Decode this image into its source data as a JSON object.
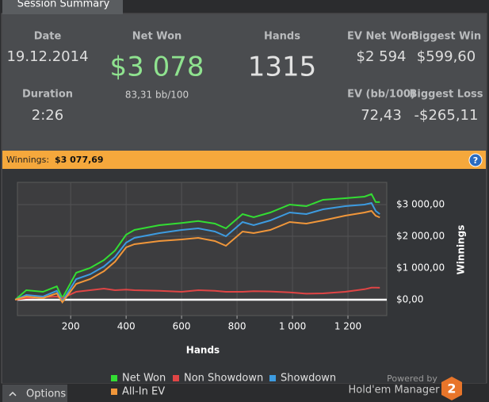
{
  "tab": "Session Summary",
  "summary": {
    "stats": [
      {
        "label": "Date",
        "value": "19.12.2014"
      },
      {
        "label": "Net Won",
        "value": "$3 078",
        "sub": "83,31 bb/100"
      },
      {
        "label": "Hands",
        "value": "1315"
      },
      {
        "label": "EV Net Won",
        "value": "$2 594"
      },
      {
        "label": "Biggest Win",
        "value": "$599,60"
      },
      {
        "label": "Duration",
        "value": "2:26"
      },
      {
        "label": "EV (bb/100)",
        "value": "72,43"
      },
      {
        "label": "Biggest Loss",
        "value": "-$265,11"
      }
    ]
  },
  "winnings_bar": {
    "label": "Winnings:",
    "value": "$3 077,69",
    "help": "?"
  },
  "chart_data": {
    "type": "line",
    "xlabel": "Hands",
    "ylabel": "Winnings",
    "x": [
      0,
      40,
      100,
      150,
      170,
      220,
      270,
      320,
      360,
      400,
      430,
      520,
      600,
      660,
      720,
      760,
      820,
      860,
      920,
      990,
      1050,
      1110,
      1190,
      1260,
      1285,
      1300,
      1315
    ],
    "series": [
      {
        "name": "Net Won",
        "color": "#33dd33",
        "values": [
          0,
          300,
          250,
          420,
          50,
          850,
          1000,
          1250,
          1550,
          2050,
          2200,
          2350,
          2420,
          2480,
          2400,
          2250,
          2700,
          2600,
          2750,
          3000,
          2950,
          3150,
          3200,
          3250,
          3330,
          3080,
          3078
        ]
      },
      {
        "name": "Non Showdown",
        "color": "#e04545",
        "values": [
          0,
          50,
          80,
          100,
          50,
          250,
          300,
          350,
          300,
          320,
          300,
          280,
          250,
          300,
          280,
          250,
          250,
          270,
          260,
          230,
          190,
          200,
          250,
          330,
          380,
          380,
          378
        ]
      },
      {
        "name": "Showdown",
        "color": "#3d9be0",
        "values": [
          0,
          150,
          100,
          280,
          -50,
          650,
          800,
          1050,
          1350,
          1800,
          1950,
          2100,
          2200,
          2250,
          2150,
          2000,
          2450,
          2350,
          2500,
          2750,
          2700,
          2850,
          2950,
          3000,
          3050,
          2800,
          2700
        ]
      },
      {
        "name": "All-In EV",
        "color": "#f0963a",
        "values": [
          0,
          100,
          50,
          200,
          -80,
          500,
          650,
          900,
          1200,
          1650,
          1750,
          1850,
          1900,
          1950,
          1850,
          1700,
          2150,
          2100,
          2200,
          2450,
          2400,
          2500,
          2650,
          2750,
          2800,
          2650,
          2594
        ]
      }
    ],
    "xlim": [
      8,
      1340
    ],
    "xticks": [
      200,
      400,
      600,
      800,
      {
        "value": 1000,
        "label": "1 000"
      },
      {
        "value": 1200,
        "label": "1 200"
      }
    ],
    "ylim": [
      -500,
      3700
    ],
    "yticks": [
      {
        "value": 0,
        "label": "$0,00"
      },
      {
        "value": 1000,
        "label": "$1 000,00"
      },
      {
        "value": 2000,
        "label": "$2 000,00"
      },
      {
        "value": 3000,
        "label": "$3 000,00"
      }
    ],
    "grid": true
  },
  "footer": {
    "options": "Options",
    "powered_by": "Powered by",
    "brand": "Hold'em Manager",
    "logo": "2"
  }
}
